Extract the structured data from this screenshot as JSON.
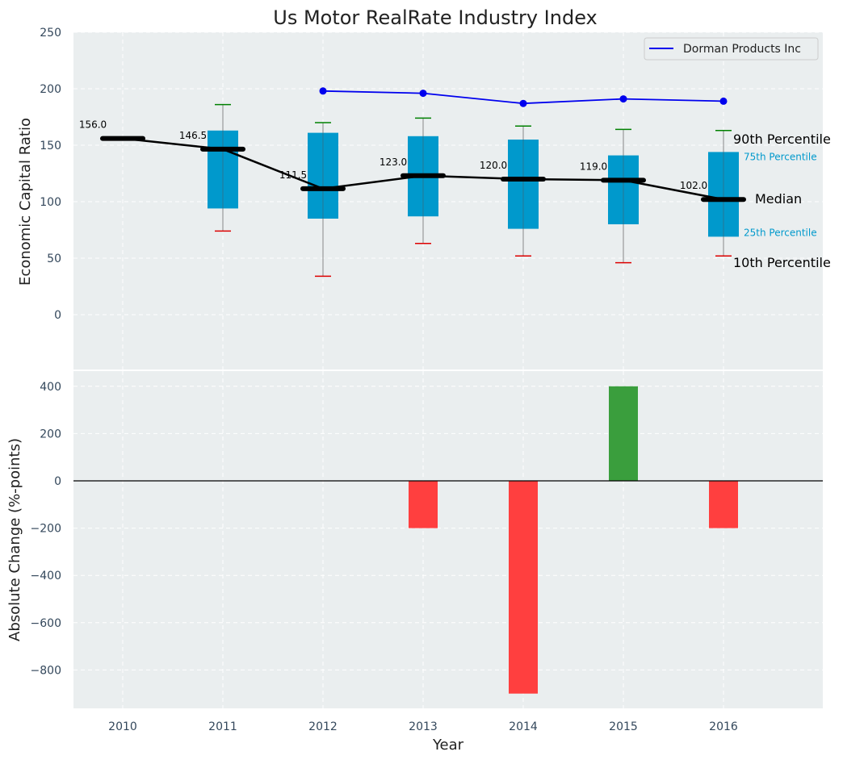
{
  "chart_data": [
    {
      "type": "box",
      "title": "Us Motor RealRate Industry Index",
      "xlabel": "",
      "ylabel": "Economic Capital Ratio",
      "ylim": [
        -50,
        250
      ],
      "yticks": [
        0,
        50,
        100,
        150,
        200,
        250
      ],
      "grid": true,
      "legend": {
        "position": "top-right",
        "entries": [
          "Dorman Products Inc"
        ]
      },
      "categories": [
        2010,
        2011,
        2012,
        2013,
        2014,
        2015,
        2016
      ],
      "percentiles": [
        {
          "year": 2010,
          "p10": null,
          "p25": null,
          "median": 156.0,
          "p75": null,
          "p90": null
        },
        {
          "year": 2011,
          "p10": 74,
          "p25": 94,
          "median": 146.5,
          "p75": 163,
          "p90": 186
        },
        {
          "year": 2012,
          "p10": 34,
          "p25": 85,
          "median": 111.5,
          "p75": 161,
          "p90": 170
        },
        {
          "year": 2013,
          "p10": 63,
          "p25": 87,
          "median": 123.0,
          "p75": 158,
          "p90": 174
        },
        {
          "year": 2014,
          "p10": 52,
          "p25": 76,
          "median": 120.0,
          "p75": 155,
          "p90": 167
        },
        {
          "year": 2015,
          "p10": 46,
          "p25": 80,
          "median": 119.0,
          "p75": 141,
          "p90": 164
        },
        {
          "year": 2016,
          "p10": 52,
          "p25": 69,
          "median": 102.0,
          "p75": 144,
          "p90": 163
        }
      ],
      "median_labels": [
        "156.0",
        "146.5",
        "111.5",
        "123.0",
        "120.0",
        "119.0",
        "102.0"
      ],
      "series": [
        {
          "name": "Dorman Products Inc",
          "color": "#0000ee",
          "x": [
            2012,
            2013,
            2014,
            2015,
            2016
          ],
          "values": [
            198,
            196,
            187,
            191,
            189
          ]
        }
      ],
      "annotations": {
        "p90": "90th Percentile",
        "p75": "75th Percentile",
        "median": "Median",
        "p25": "25th Percentile",
        "p10": "10th Percentile"
      },
      "colors": {
        "box": "#0099cc",
        "p90_cap": "#008000",
        "p10_cap": "#dd0000",
        "median": "#000000",
        "background": "#eaeeef"
      }
    },
    {
      "type": "bar",
      "xlabel": "Year",
      "ylabel": "Absolute Change (%-points)",
      "ylim": [
        -960,
        470
      ],
      "yticks": [
        -800,
        -600,
        -400,
        -200,
        0,
        200,
        400
      ],
      "ytick_labels": [
        "−800",
        "−600",
        "−400",
        "−200",
        "0",
        "200",
        "400"
      ],
      "grid": true,
      "categories": [
        2010,
        2011,
        2012,
        2013,
        2014,
        2015,
        2016
      ],
      "values": [
        0,
        0,
        0,
        -200,
        -900,
        400,
        -200
      ],
      "colors": {
        "positive": "#3a9e3d",
        "negative": "#ff3f3f"
      }
    }
  ]
}
